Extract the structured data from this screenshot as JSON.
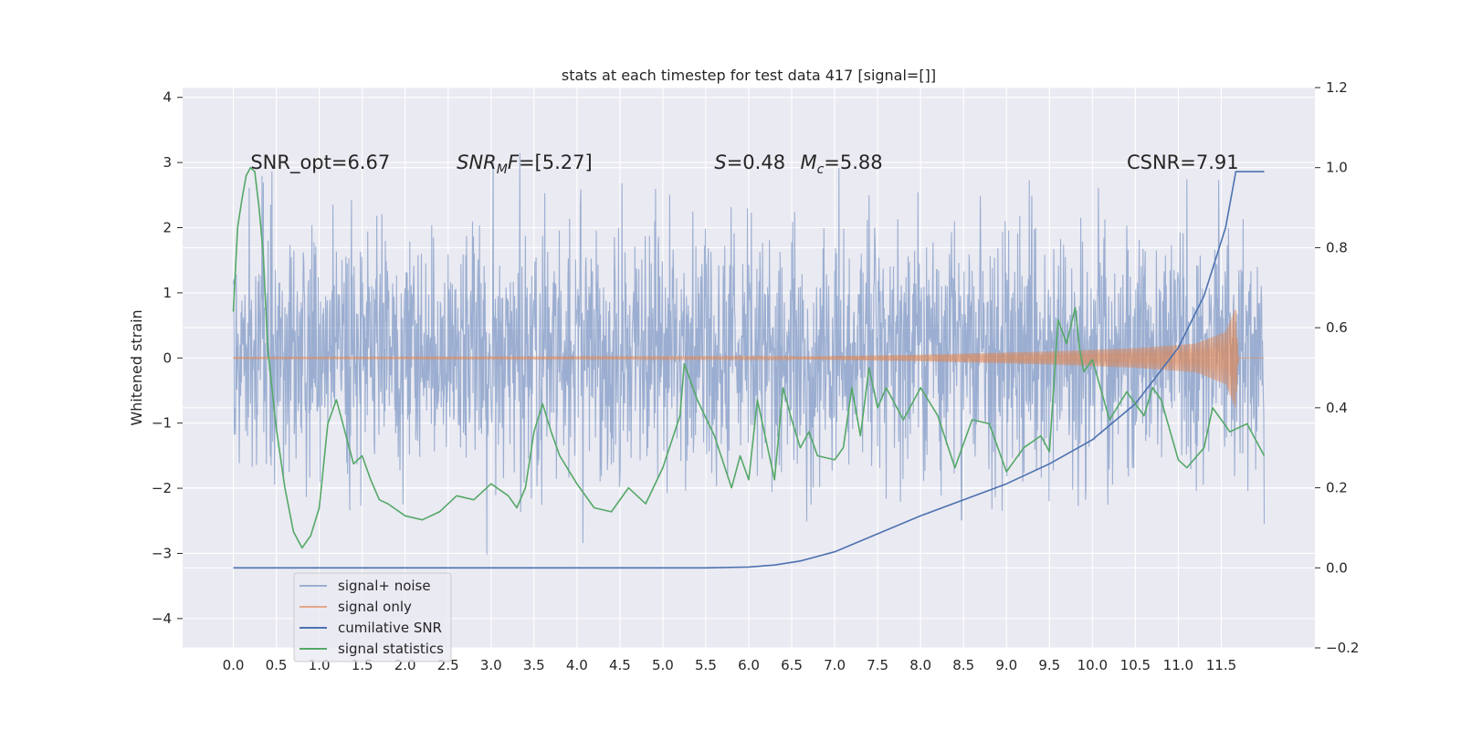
{
  "chart_data": {
    "type": "line",
    "title": "stats at each timestep for test data 417 [signal=[]]",
    "xlabel": "",
    "ylabel": "Whitened strain",
    "xlim": [
      -0.59,
      12.59
    ],
    "ylim": [
      -4.45,
      4.15
    ],
    "y2lim": [
      -0.2,
      1.2
    ],
    "x_ticks": [
      "0.0",
      "0.5",
      "1.0",
      "1.5",
      "2.0",
      "2.5",
      "3.0",
      "3.5",
      "4.0",
      "4.5",
      "5.0",
      "5.5",
      "6.0",
      "6.5",
      "7.0",
      "7.5",
      "8.0",
      "8.5",
      "9.0",
      "9.5",
      "10.0",
      "10.5",
      "11.0",
      "11.5"
    ],
    "y_ticks": [
      "4",
      "3",
      "2",
      "1",
      "0",
      "−1",
      "−2",
      "−3",
      "−4"
    ],
    "y2_ticks": [
      "1.2",
      "1.0",
      "0.8",
      "0.6",
      "0.4",
      "0.2",
      "0.0",
      "−0.2"
    ],
    "grid": true,
    "legend_position": "lower-left",
    "annotations": [
      {
        "id": "snr_opt",
        "parts": [
          {
            "t": "SNR_opt=6.67"
          }
        ],
        "x": 0.2,
        "y": 3.0
      },
      {
        "id": "snr_mf",
        "parts": [
          {
            "t": "SNR",
            "style": "italic"
          },
          {
            "t": "M",
            "style": "italic-sub"
          },
          {
            "t": "F",
            "style": "italic"
          },
          {
            "t": "=[5.27]"
          }
        ],
        "x": 2.6,
        "y": 3.0
      },
      {
        "id": "s_val",
        "parts": [
          {
            "t": "S",
            "style": "italic"
          },
          {
            "t": "=0.48"
          }
        ],
        "x": 5.6,
        "y": 3.0
      },
      {
        "id": "mc_val",
        "parts": [
          {
            "t": "M",
            "style": "italic"
          },
          {
            "t": "c",
            "style": "italic-sub"
          },
          {
            "t": "=5.88"
          }
        ],
        "x": 6.6,
        "y": 3.0
      },
      {
        "id": "csnr",
        "parts": [
          {
            "t": "CSNR=7.91"
          }
        ],
        "x": 10.4,
        "y": 3.0
      }
    ],
    "series": [
      {
        "name": "signal+ noise",
        "color": "#4c72b0",
        "axis": "left",
        "style": "noise",
        "envelope": {
          "x": [
            0.0,
            12.0
          ],
          "center": 0.1,
          "sigma": 0.95,
          "max_abs": 3.8
        }
      },
      {
        "name": "signal only",
        "color": "#dd8452",
        "axis": "left",
        "style": "chirp",
        "envelope": {
          "x": [
            0.0,
            6.5,
            8.0,
            9.5,
            10.5,
            11.2,
            11.55,
            11.67,
            11.7,
            12.0
          ],
          "amp": [
            0.01,
            0.02,
            0.05,
            0.1,
            0.15,
            0.22,
            0.4,
            0.78,
            0.0,
            0.0
          ]
        }
      },
      {
        "name": "cumilative SNR",
        "color": "#4c72b0",
        "axis": "right",
        "x": [
          0.0,
          5.5,
          6.0,
          6.3,
          6.6,
          7.0,
          7.5,
          8.0,
          8.5,
          9.0,
          9.5,
          10.0,
          10.5,
          11.0,
          11.3,
          11.55,
          11.67,
          12.0
        ],
        "y": [
          0.0,
          0.0,
          0.002,
          0.007,
          0.017,
          0.04,
          0.085,
          0.13,
          0.17,
          0.21,
          0.26,
          0.32,
          0.41,
          0.55,
          0.68,
          0.85,
          0.99,
          0.99
        ]
      },
      {
        "name": "signal statistics",
        "color": "#55a868",
        "axis": "right",
        "x": [
          0.0,
          0.05,
          0.1,
          0.15,
          0.2,
          0.25,
          0.3,
          0.35,
          0.4,
          0.5,
          0.6,
          0.7,
          0.8,
          0.9,
          1.0,
          1.1,
          1.2,
          1.3,
          1.4,
          1.5,
          1.6,
          1.7,
          1.8,
          2.0,
          2.2,
          2.4,
          2.6,
          2.8,
          3.0,
          3.2,
          3.3,
          3.4,
          3.5,
          3.6,
          3.7,
          3.8,
          4.0,
          4.2,
          4.4,
          4.6,
          4.8,
          5.0,
          5.2,
          5.25,
          5.4,
          5.6,
          5.8,
          5.9,
          6.0,
          6.1,
          6.3,
          6.4,
          6.5,
          6.6,
          6.7,
          6.8,
          7.0,
          7.1,
          7.2,
          7.3,
          7.4,
          7.5,
          7.6,
          7.8,
          8.0,
          8.2,
          8.4,
          8.6,
          8.8,
          9.0,
          9.2,
          9.4,
          9.5,
          9.6,
          9.7,
          9.8,
          9.85,
          9.9,
          10.0,
          10.2,
          10.4,
          10.6,
          10.7,
          10.8,
          11.0,
          11.1,
          11.3,
          11.4,
          11.6,
          11.8,
          12.0
        ],
        "y": [
          0.64,
          0.85,
          0.92,
          0.98,
          1.0,
          0.99,
          0.9,
          0.78,
          0.55,
          0.35,
          0.2,
          0.09,
          0.05,
          0.08,
          0.15,
          0.36,
          0.42,
          0.34,
          0.26,
          0.28,
          0.22,
          0.17,
          0.16,
          0.13,
          0.12,
          0.14,
          0.18,
          0.17,
          0.21,
          0.18,
          0.15,
          0.2,
          0.34,
          0.41,
          0.34,
          0.28,
          0.21,
          0.15,
          0.14,
          0.2,
          0.16,
          0.25,
          0.38,
          0.51,
          0.42,
          0.33,
          0.2,
          0.28,
          0.22,
          0.42,
          0.22,
          0.45,
          0.37,
          0.3,
          0.34,
          0.28,
          0.27,
          0.3,
          0.45,
          0.33,
          0.5,
          0.4,
          0.45,
          0.37,
          0.45,
          0.38,
          0.25,
          0.37,
          0.36,
          0.24,
          0.3,
          0.33,
          0.29,
          0.62,
          0.56,
          0.65,
          0.55,
          0.49,
          0.52,
          0.37,
          0.44,
          0.38,
          0.45,
          0.42,
          0.27,
          0.25,
          0.3,
          0.4,
          0.34,
          0.36,
          0.28
        ]
      }
    ]
  }
}
